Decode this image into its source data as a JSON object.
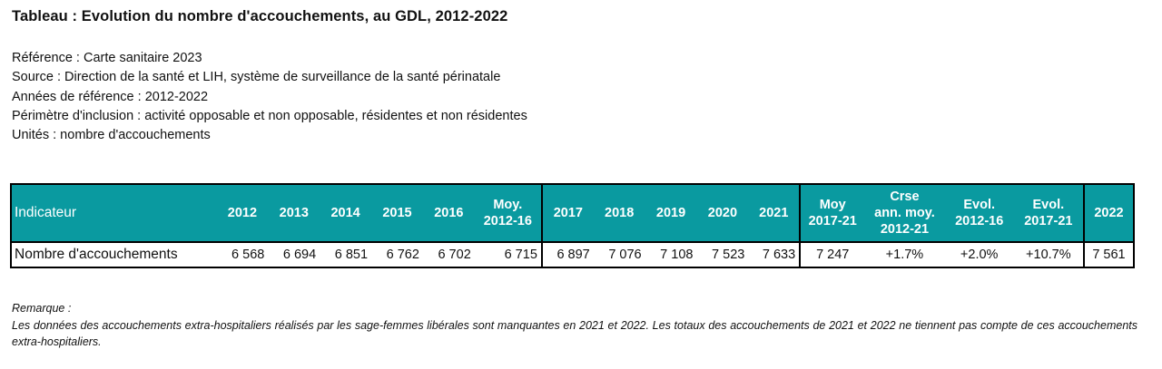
{
  "title": "Tableau : Evolution du nombre d'accouchements, au GDL, 2012-2022",
  "meta": [
    "Référence : Carte sanitaire 2023",
    "Source : Direction de la santé et LIH, système de surveillance de la santé périnatale",
    "Années de référence : 2012-2022",
    "Périmètre d'inclusion : activité opposable et non opposable, résidentes et non résidentes",
    "Unités : nombre d'accouchements"
  ],
  "table": {
    "headers": {
      "indicator": "Indicateur",
      "y2012": "2012",
      "y2013": "2013",
      "y2014": "2014",
      "y2015": "2015",
      "y2016": "2016",
      "moy1_l1": "Moy.",
      "moy1_l2": "2012-16",
      "y2017": "2017",
      "y2018": "2018",
      "y2019": "2019",
      "y2020": "2020",
      "y2021": "2021",
      "moy2_l1": "Moy",
      "moy2_l2": "2017-21",
      "crse_l1": "Crse",
      "crse_l2": "ann. moy.",
      "crse_l3": "2012-21",
      "evol1_l1": "Evol.",
      "evol1_l2": "2012-16",
      "evol2_l1": "Evol.",
      "evol2_l2": "2017-21",
      "y2022": "2022"
    },
    "row": {
      "label": "Nombre d'accouchements",
      "y2012": "6 568",
      "y2013": "6 694",
      "y2014": "6 851",
      "y2015": "6 762",
      "y2016": "6 702",
      "moy1": "6 715",
      "y2017": "6 897",
      "y2018": "7 076",
      "y2019": "7 108",
      "y2020": "7 523",
      "y2021": "7 633",
      "moy2": "7 247",
      "crse": "+1.7%",
      "evol1": "+2.0%",
      "evol2": "+10.7%",
      "y2022": "7 561"
    }
  },
  "remark": {
    "label": "Remarque :",
    "text": "Les données des accouchements extra-hospitaliers réalisés par les sage-femmes libérales sont manquantes en 2021 et 2022. Les totaux des accouchements de 2021 et 2022 ne tiennent pas compte de ces accouchements extra-hospitaliers."
  }
}
